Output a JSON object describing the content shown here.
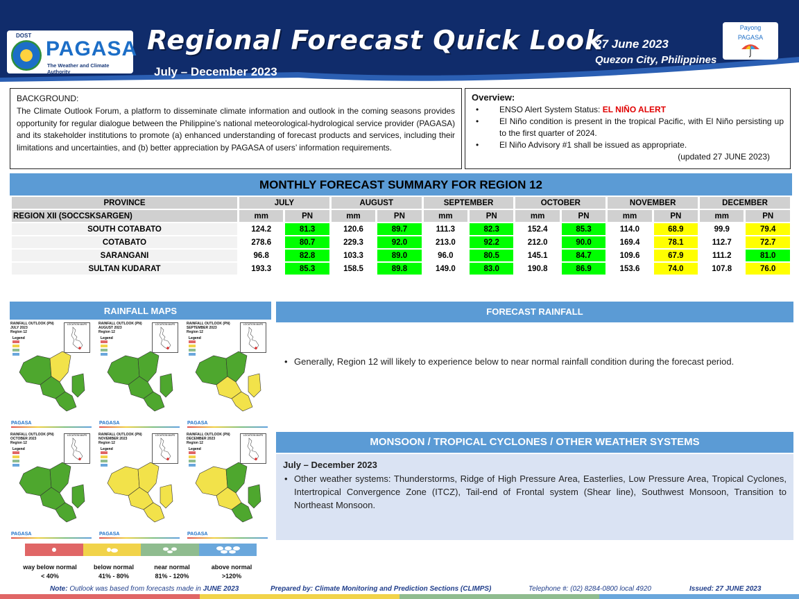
{
  "header": {
    "logo_agency": "DOST",
    "logo_name": "PAGASA",
    "logo_tagline": "The Weather and Climate Authority",
    "title": "Regional Forecast Quick Look",
    "period": "July – December 2023",
    "date": "27 June 2023",
    "place": "Quezon City, Philippines",
    "payong_line1": "Payong",
    "payong_line2": "PAGASA"
  },
  "background": {
    "heading": "BACKGROUND:",
    "text": "The Climate Outlook Forum, a platform to disseminate climate information and outlook in the coming seasons provides opportunity for regular dialogue between the Philippine’s national meteorological-hydrological service provider (PAGASA) and its stakeholder institutions to promote (a) enhanced understanding of forecast products and services, including their limitations and uncertainties, and (b) better appreciation by PAGASA of users’ information requirements."
  },
  "overview": {
    "heading": "Overview:",
    "item1_prefix": "ENSO Alert System Status: ",
    "item1_alert": "EL NIÑO ALERT",
    "item2": "El Niño condition is present in the tropical Pacific, with El Niño persisting up to the first quarter of 2024.",
    "item3": "El Niño Advisory #1 shall be issued as appropriate.",
    "updated": "(updated 27 JUNE 2023)"
  },
  "table": {
    "title": "MONTHLY FORECAST SUMMARY FOR REGION 12",
    "province_header": "PROVINCE",
    "region_label": "REGION XII (SOCCSKSARGEN)",
    "unit_mm": "mm",
    "unit_pn": "PN",
    "months": [
      "JULY",
      "AUGUST",
      "SEPTEMBER",
      "OCTOBER",
      "NOVEMBER",
      "DECEMBER"
    ],
    "rows": [
      {
        "province": "SOUTH COTABATO",
        "values": [
          [
            "124.2",
            "81.3"
          ],
          [
            "120.6",
            "89.7"
          ],
          [
            "111.3",
            "82.3"
          ],
          [
            "152.4",
            "85.3"
          ],
          [
            "114.0",
            "68.9"
          ],
          [
            "99.9",
            "79.4"
          ]
        ]
      },
      {
        "province": "COTABATO",
        "values": [
          [
            "278.6",
            "80.7"
          ],
          [
            "229.3",
            "92.0"
          ],
          [
            "213.0",
            "92.2"
          ],
          [
            "212.0",
            "90.0"
          ],
          [
            "169.4",
            "78.1"
          ],
          [
            "112.7",
            "72.7"
          ]
        ]
      },
      {
        "province": "SARANGANI",
        "values": [
          [
            "96.8",
            "82.8"
          ],
          [
            "103.3",
            "89.0"
          ],
          [
            "96.0",
            "80.5"
          ],
          [
            "145.1",
            "84.7"
          ],
          [
            "109.6",
            "67.9"
          ],
          [
            "111.2",
            "81.0"
          ]
        ]
      },
      {
        "province": "SULTAN KUDARAT",
        "values": [
          [
            "193.3",
            "85.3"
          ],
          [
            "158.5",
            "89.8"
          ],
          [
            "149.0",
            "83.0"
          ],
          [
            "190.8",
            "86.9"
          ],
          [
            "153.6",
            "74.0"
          ],
          [
            "107.8",
            "76.0"
          ]
        ]
      }
    ],
    "pn_colors": [
      [
        "green",
        "green",
        "green",
        "green",
        "yellow",
        "yellow"
      ],
      [
        "green",
        "green",
        "green",
        "green",
        "yellow",
        "yellow"
      ],
      [
        "green",
        "green",
        "green",
        "green",
        "yellow",
        "green"
      ],
      [
        "green",
        "green",
        "green",
        "green",
        "yellow",
        "yellow"
      ]
    ]
  },
  "rainfall_maps": {
    "heading": "RAINFALL MAPS",
    "maps": [
      {
        "title": "RAINFALL OUTLOOK (PN)",
        "month": "JULY 2023",
        "region": "Region 12",
        "condition": "mostly near normal"
      },
      {
        "title": "RAINFALL OUTLOOK (PN)",
        "month": "AUGUST 2023",
        "region": "Region 12",
        "condition": "near normal"
      },
      {
        "title": "RAINFALL OUTLOOK (PN)",
        "month": "SEPTEMBER 2023",
        "region": "Region 12",
        "condition": "mixed"
      },
      {
        "title": "RAINFALL OUTLOOK (PN)",
        "month": "OCTOBER 2023",
        "region": "Region 12",
        "condition": "near normal"
      },
      {
        "title": "RAINFALL OUTLOOK (PN)",
        "month": "NOVEMBER 2023",
        "region": "Region 12",
        "condition": "below normal"
      },
      {
        "title": "RAINFALL OUTLOOK (PN)",
        "month": "DECEMBER 2023",
        "region": "Region 12",
        "condition": "mixed"
      }
    ],
    "legend_title": "Legend",
    "location_map": "LOCATION MAPS",
    "legend_items": [
      {
        "label": "way below normal",
        "range": "< 40%",
        "color": "#e06666"
      },
      {
        "label": "below normal",
        "range": "41% - 80%",
        "color": "#f1d34a"
      },
      {
        "label": "near normal",
        "range": "81% - 120%",
        "color": "#8fbc8f"
      },
      {
        "label": "above normal",
        "range": ">120%",
        "color": "#6aa7dc"
      }
    ]
  },
  "forecast_rainfall": {
    "heading": "FORECAST RAINFALL",
    "text": "Generally, Region 12 will likely to experience below to near normal rainfall condition during the forecast period."
  },
  "monsoon": {
    "heading": "MONSOON / TROPICAL CYCLONES / OTHER WEATHER SYSTEMS",
    "period": "July – December 2023",
    "text": "Other weather systems: Thunderstorms,  Ridge of High Pressure Area,  Easterlies, Low Pressure Area, Tropical Cyclones, Intertropical Convergence Zone (ITCZ), Tail-end of Frontal system (Shear line), Southwest Monsoon, Transition to Northeast Monsoon."
  },
  "footer": {
    "note_label": "Note:",
    "note_text": " Outlook was based from forecasts made in ",
    "note_month": "JUNE 2023",
    "prepared": "Prepared by: Climate Monitoring and Prediction Sections (CLIMPS)",
    "telephone": "Telephone #:  (02) 8284-0800 local 4920",
    "issued": "Issued: 27 JUNE 2023"
  },
  "colors": {
    "navy": "#102c6b",
    "accent_blue": "#5b9bd5",
    "green_pn": "#00ff00",
    "yellow_pn": "#ffff00",
    "alert_red": "#e00000",
    "map_green": "#4ea72e",
    "map_yellow": "#f2e24a"
  }
}
